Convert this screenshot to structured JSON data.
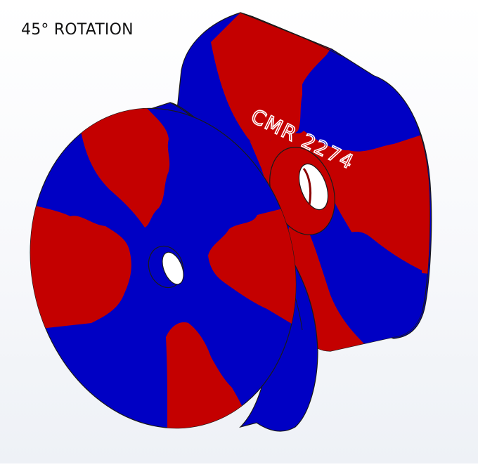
{
  "view": {
    "title": "45° ROTATION",
    "engraving": "CMR 2274"
  },
  "colors": {
    "pole_red": "#c40000",
    "pole_blue": "#0000c4",
    "edge": "#1a1a1a",
    "engraving": "#ffffff"
  }
}
